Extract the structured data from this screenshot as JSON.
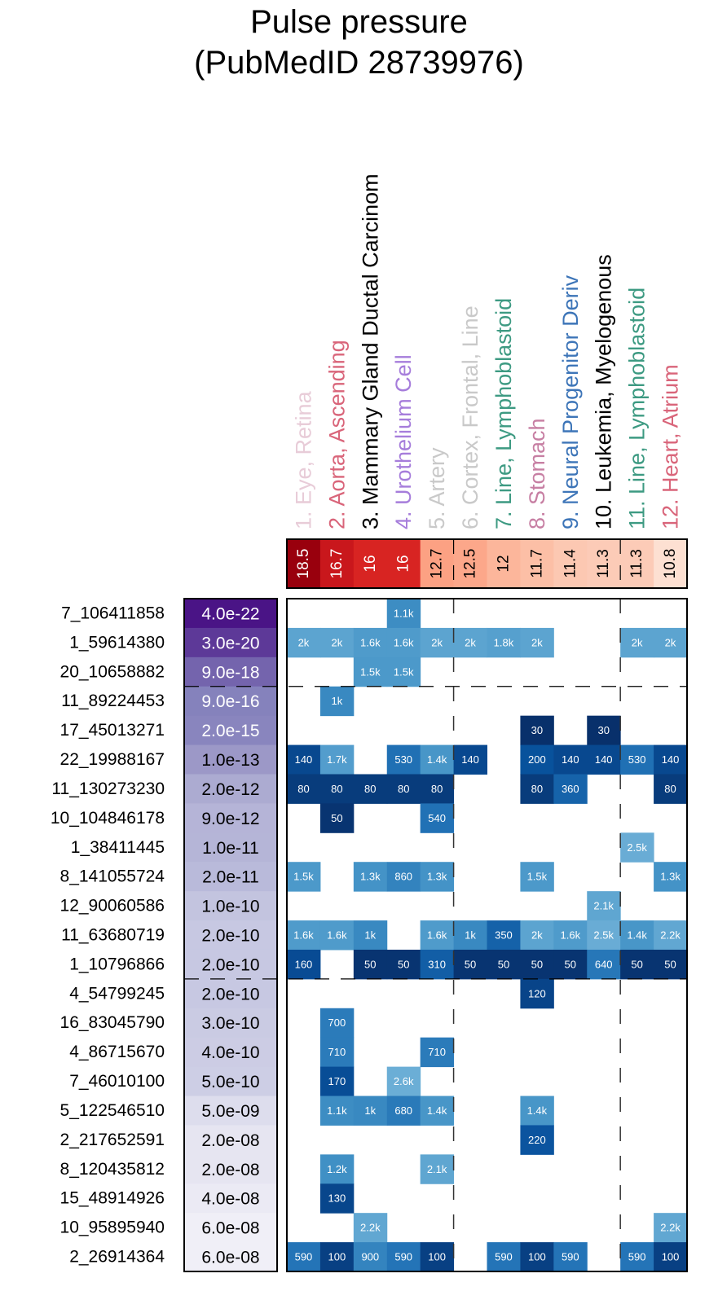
{
  "chart_data": {
    "type": "heatmap",
    "title": "Pulse pressure\n(PubMedID 28739976)",
    "title_lines": [
      "Pulse pressure",
      "(PubMedID 28739976)"
    ],
    "columns": [
      {
        "label": "1. Eye, Retina",
        "color": "#e8ccd8",
        "score": "18.5",
        "score_value": 18.5
      },
      {
        "label": "2. Aorta, Ascending",
        "color": "#d9657a",
        "score": "16.7",
        "score_value": 16.7
      },
      {
        "label": "3. Mammary Gland Ductal Carcinom",
        "color": "#000000",
        "score": "16",
        "score_value": 16
      },
      {
        "label": "4. Urothelium Cell",
        "color": "#a67ddb",
        "score": "16",
        "score_value": 16
      },
      {
        "label": "5. Artery",
        "color": "#c9c9c9",
        "score": "12.7",
        "score_value": 12.7
      },
      {
        "label": "6. Cortex, Frontal, Line",
        "color": "#c9c9c9",
        "score": "12.5",
        "score_value": 12.5
      },
      {
        "label": "7. Line, Lymphoblastoid",
        "color": "#3d9a82",
        "score": "12",
        "score_value": 12
      },
      {
        "label": "8. Stomach",
        "color": "#c77fa3",
        "score": "11.7",
        "score_value": 11.7
      },
      {
        "label": "9. Neural Progenitor Deriv",
        "color": "#3d75b8",
        "score": "11.4",
        "score_value": 11.4
      },
      {
        "label": "10. Leukemia, Myelogenous",
        "color": "#000000",
        "score": "11.3",
        "score_value": 11.3
      },
      {
        "label": "11. Line, Lymphoblastoid",
        "color": "#3d9a82",
        "score": "11.3",
        "score_value": 11.3
      },
      {
        "label": "12. Heart, Atrium",
        "color": "#d9657a",
        "score": "10.8",
        "score_value": 10.8
      }
    ],
    "rows": [
      {
        "label": "7_106411858",
        "pvalue": "4.0e-22",
        "cells": [
          null,
          null,
          null,
          "1.1k",
          null,
          null,
          null,
          null,
          null,
          null,
          null,
          null
        ]
      },
      {
        "label": "1_59614380",
        "pvalue": "3.0e-20",
        "cells": [
          "2k",
          "2k",
          "1.6k",
          "1.6k",
          "2k",
          "2k",
          "1.8k",
          "2k",
          null,
          null,
          "2k",
          "2k"
        ]
      },
      {
        "label": "20_10658882",
        "pvalue": "9.0e-18",
        "cells": [
          null,
          null,
          "1.5k",
          "1.5k",
          null,
          null,
          null,
          null,
          null,
          null,
          null,
          null
        ]
      },
      {
        "label": "11_89224453",
        "pvalue": "9.0e-16",
        "cells": [
          null,
          "1k",
          null,
          null,
          null,
          null,
          null,
          null,
          null,
          null,
          null,
          null
        ]
      },
      {
        "label": "17_45013271",
        "pvalue": "2.0e-15",
        "cells": [
          null,
          null,
          null,
          null,
          null,
          null,
          null,
          "30",
          null,
          "30",
          null,
          null
        ]
      },
      {
        "label": "22_19988167",
        "pvalue": "1.0e-13",
        "cells": [
          "140",
          "1.7k",
          null,
          "530",
          "1.4k",
          "140",
          null,
          "200",
          "140",
          "140",
          "530",
          "140"
        ]
      },
      {
        "label": "11_130273230",
        "pvalue": "2.0e-12",
        "cells": [
          "80",
          "80",
          "80",
          "80",
          "80",
          null,
          null,
          "80",
          "360",
          null,
          null,
          "80"
        ]
      },
      {
        "label": "10_104846178",
        "pvalue": "9.0e-12",
        "cells": [
          null,
          "50",
          null,
          null,
          "540",
          null,
          null,
          null,
          null,
          null,
          null,
          null
        ]
      },
      {
        "label": "1_38411445",
        "pvalue": "1.0e-11",
        "cells": [
          null,
          null,
          null,
          null,
          null,
          null,
          null,
          null,
          null,
          null,
          "2.5k",
          null
        ]
      },
      {
        "label": "8_141055724",
        "pvalue": "2.0e-11",
        "cells": [
          "1.5k",
          null,
          "1.3k",
          "860",
          "1.3k",
          null,
          null,
          "1.5k",
          null,
          null,
          null,
          "1.3k"
        ]
      },
      {
        "label": "12_90060586",
        "pvalue": "1.0e-10",
        "cells": [
          null,
          null,
          null,
          null,
          null,
          null,
          null,
          null,
          null,
          "2.1k",
          null,
          null
        ]
      },
      {
        "label": "11_63680719",
        "pvalue": "2.0e-10",
        "cells": [
          "1.6k",
          "1.6k",
          "1k",
          null,
          "1.6k",
          "1k",
          "350",
          "2k",
          "1.6k",
          "2.5k",
          "1.4k",
          "2.2k"
        ]
      },
      {
        "label": "1_10796866",
        "pvalue": "2.0e-10",
        "cells": [
          "160",
          null,
          "50",
          "50",
          "310",
          "50",
          "50",
          "50",
          "50",
          "640",
          "50",
          "50"
        ]
      },
      {
        "label": "4_54799245",
        "pvalue": "2.0e-10",
        "cells": [
          null,
          null,
          null,
          null,
          null,
          null,
          null,
          "120",
          null,
          null,
          null,
          null
        ]
      },
      {
        "label": "16_83045790",
        "pvalue": "3.0e-10",
        "cells": [
          null,
          "700",
          null,
          null,
          null,
          null,
          null,
          null,
          null,
          null,
          null,
          null
        ]
      },
      {
        "label": "4_86715670",
        "pvalue": "4.0e-10",
        "cells": [
          null,
          "710",
          null,
          null,
          "710",
          null,
          null,
          null,
          null,
          null,
          null,
          null
        ]
      },
      {
        "label": "7_46010100",
        "pvalue": "5.0e-10",
        "cells": [
          null,
          "170",
          null,
          "2.6k",
          null,
          null,
          null,
          null,
          null,
          null,
          null,
          null
        ]
      },
      {
        "label": "5_122546510",
        "pvalue": "5.0e-09",
        "cells": [
          null,
          "1.1k",
          "1k",
          "680",
          "1.4k",
          null,
          null,
          "1.4k",
          null,
          null,
          null,
          null
        ]
      },
      {
        "label": "2_217652591",
        "pvalue": "2.0e-08",
        "cells": [
          null,
          null,
          null,
          null,
          null,
          null,
          null,
          "220",
          null,
          null,
          null,
          null
        ]
      },
      {
        "label": "8_120435812",
        "pvalue": "2.0e-08",
        "cells": [
          null,
          "1.2k",
          null,
          null,
          "2.1k",
          null,
          null,
          null,
          null,
          null,
          null,
          null
        ]
      },
      {
        "label": "15_48914926",
        "pvalue": "4.0e-08",
        "cells": [
          null,
          "130",
          null,
          null,
          null,
          null,
          null,
          null,
          null,
          null,
          null,
          null
        ]
      },
      {
        "label": "10_95895940",
        "pvalue": "6.0e-08",
        "cells": [
          null,
          null,
          "2.2k",
          null,
          null,
          null,
          null,
          null,
          null,
          null,
          null,
          "2.2k"
        ]
      },
      {
        "label": "2_26914364",
        "pvalue": "6.0e-08",
        "cells": [
          "590",
          "100",
          "900",
          "590",
          "100",
          null,
          "590",
          "100",
          "590",
          null,
          "590",
          "100"
        ]
      }
    ],
    "row_separators_after": [
      3,
      13
    ],
    "column_separators_after": [
      5,
      10
    ],
    "colors": {
      "score_high": "#99000d",
      "score_low": "#fde0d2",
      "pvalue_high": "#4a1486",
      "pvalue_low": "#f0eff7",
      "cell_near": "#08306b",
      "cell_far": "#6baed6"
    }
  }
}
